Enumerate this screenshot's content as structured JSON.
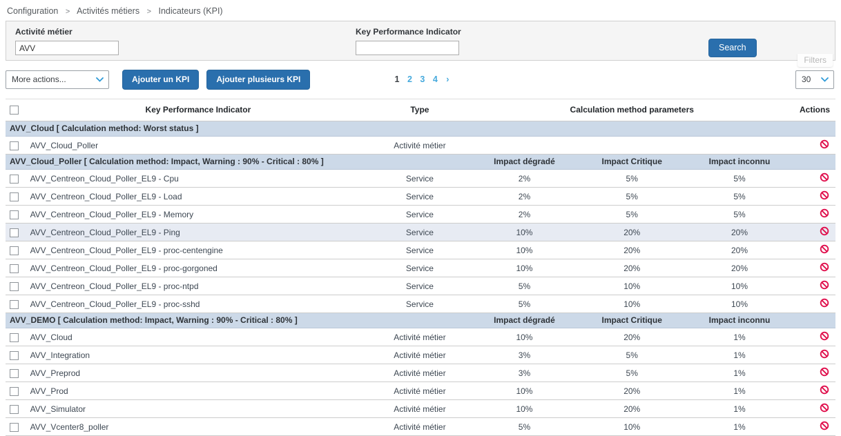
{
  "breadcrumb": {
    "items": [
      "Configuration",
      "Activités métiers",
      "Indicateurs (KPI)"
    ],
    "separator": ">"
  },
  "filters": {
    "activity_label": "Activité métier",
    "activity_value": "AVV",
    "kpi_label": "Key Performance Indicator",
    "kpi_value": "",
    "search_label": "Search",
    "filters_tab_label": "Filters"
  },
  "toolbar": {
    "more_actions_label": "More actions...",
    "add_kpi_label": "Ajouter un KPI",
    "add_multiple_kpi_label": "Ajouter plusieurs KPI",
    "pagination": {
      "pages": [
        "1",
        "2",
        "3",
        "4"
      ],
      "current": "1",
      "next": "›"
    },
    "page_size": "30"
  },
  "table": {
    "headers": {
      "kpi": "Key Performance Indicator",
      "type": "Type",
      "params": "Calculation method parameters",
      "actions": "Actions"
    },
    "groups": [
      {
        "label": "AVV_Cloud [ Calculation method: Worst status ]",
        "impact_columns": null,
        "rows": [
          {
            "name": "AVV_Cloud_Poller",
            "type": "Activité métier",
            "values": [
              "",
              "",
              ""
            ]
          }
        ]
      },
      {
        "label": "AVV_Cloud_Poller [ Calculation method: Impact, Warning : 90% - Critical : 80% ]",
        "impact_columns": [
          "Impact dégradé",
          "Impact Critique",
          "Impact inconnu"
        ],
        "rows": [
          {
            "name": "AVV_Centreon_Cloud_Poller_EL9 - Cpu",
            "type": "Service",
            "values": [
              "2%",
              "5%",
              "5%"
            ]
          },
          {
            "name": "AVV_Centreon_Cloud_Poller_EL9 - Load",
            "type": "Service",
            "values": [
              "2%",
              "5%",
              "5%"
            ]
          },
          {
            "name": "AVV_Centreon_Cloud_Poller_EL9 - Memory",
            "type": "Service",
            "values": [
              "2%",
              "5%",
              "5%"
            ]
          },
          {
            "name": "AVV_Centreon_Cloud_Poller_EL9 - Ping",
            "type": "Service",
            "values": [
              "10%",
              "20%",
              "20%"
            ],
            "highlighted": true
          },
          {
            "name": "AVV_Centreon_Cloud_Poller_EL9 - proc-centengine",
            "type": "Service",
            "values": [
              "10%",
              "20%",
              "20%"
            ]
          },
          {
            "name": "AVV_Centreon_Cloud_Poller_EL9 - proc-gorgoned",
            "type": "Service",
            "values": [
              "10%",
              "20%",
              "20%"
            ]
          },
          {
            "name": "AVV_Centreon_Cloud_Poller_EL9 - proc-ntpd",
            "type": "Service",
            "values": [
              "5%",
              "10%",
              "10%"
            ]
          },
          {
            "name": "AVV_Centreon_Cloud_Poller_EL9 - proc-sshd",
            "type": "Service",
            "values": [
              "5%",
              "10%",
              "10%"
            ]
          }
        ]
      },
      {
        "label": "AVV_DEMO [ Calculation method: Impact, Warning : 90% - Critical : 80% ]",
        "impact_columns": [
          "Impact dégradé",
          "Impact Critique",
          "Impact inconnu"
        ],
        "rows": [
          {
            "name": "AVV_Cloud",
            "type": "Activité métier",
            "values": [
              "10%",
              "20%",
              "1%"
            ]
          },
          {
            "name": "AVV_Integration",
            "type": "Activité métier",
            "values": [
              "3%",
              "5%",
              "1%"
            ]
          },
          {
            "name": "AVV_Preprod",
            "type": "Activité métier",
            "values": [
              "3%",
              "5%",
              "1%"
            ]
          },
          {
            "name": "AVV_Prod",
            "type": "Activité métier",
            "values": [
              "10%",
              "20%",
              "1%"
            ]
          },
          {
            "name": "AVV_Simulator",
            "type": "Activité métier",
            "values": [
              "10%",
              "20%",
              "1%"
            ]
          },
          {
            "name": "AVV_Vcenter8_poller",
            "type": "Activité métier",
            "values": [
              "5%",
              "10%",
              "1%"
            ]
          }
        ]
      }
    ]
  },
  "colors": {
    "primary_button": "#2a6fad",
    "pagination_link": "#47aadd",
    "select_chevron": "#2f9bd8",
    "group_row_bg": "#ccd9e8",
    "highlight_row_bg": "#e7ebf3",
    "forbidden_icon": "#e0104d",
    "filter_panel_bg": "#f5f5f5"
  }
}
